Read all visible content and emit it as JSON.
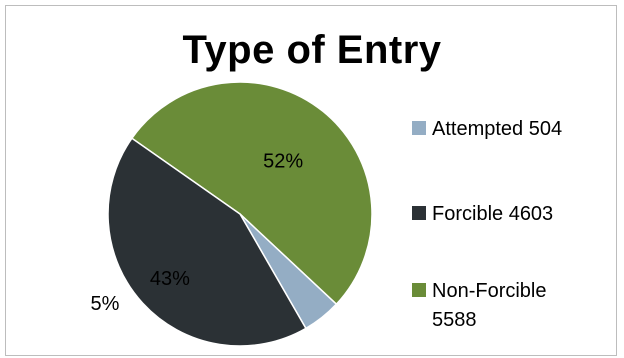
{
  "chart_data": {
    "type": "pie",
    "title": "Type of Entry",
    "slices": [
      {
        "name": "Attempted",
        "value": 504,
        "legend_label": "Attempted 504",
        "percent_label": "5%",
        "color": "#94adc4"
      },
      {
        "name": "Forcible",
        "value": 4603,
        "legend_label": "Forcible 4603",
        "percent_label": "43%",
        "color": "#2b3135"
      },
      {
        "name": "Non-Forcible",
        "value": 5588,
        "legend_label": "Non-Forcible 5588",
        "percent_label": "52%",
        "color": "#6a8c38"
      }
    ],
    "legend_position": "right"
  }
}
